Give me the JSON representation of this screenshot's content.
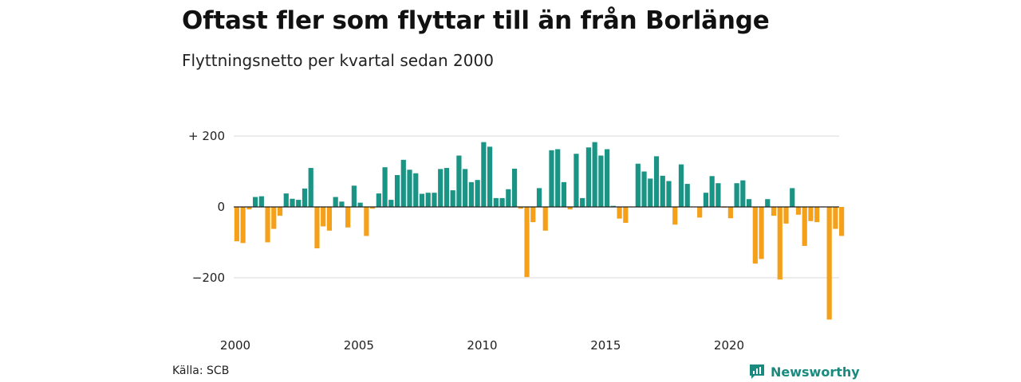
{
  "header": {
    "title": "Oftast fler som flyttar till än från Borlänge",
    "subtitle": "Flyttningsnetto per kvartal sedan 2000"
  },
  "footer": {
    "source": "Källa: SCB",
    "brand": "Newsworthy",
    "brand_icon": "newsworthy-logo-icon"
  },
  "colors": {
    "positive": "#1a9484",
    "negative": "#f5a01a",
    "grid": "#d9d9d9",
    "baseline": "#222222"
  },
  "chart_data": {
    "type": "bar",
    "title": "Oftast fler som flyttar till än från Borlänge",
    "subtitle": "Flyttningsnetto per kvartal sedan 2000",
    "xlabel": "",
    "ylabel": "",
    "ylim": [
      -320,
      200
    ],
    "y_ticks": [
      {
        "value": 200,
        "label": "+ 200"
      },
      {
        "value": 0,
        "label": "0"
      },
      {
        "value": -200,
        "label": "−200"
      }
    ],
    "x_ticks": [
      "2000",
      "2005",
      "2010",
      "2015",
      "2020"
    ],
    "grid": true,
    "start": "2000 Q1",
    "categories": [
      "2000 Q1",
      "2000 Q2",
      "2000 Q3",
      "2000 Q4",
      "2001 Q1",
      "2001 Q2",
      "2001 Q3",
      "2001 Q4",
      "2002 Q1",
      "2002 Q2",
      "2002 Q3",
      "2002 Q4",
      "2003 Q1",
      "2003 Q2",
      "2003 Q3",
      "2003 Q4",
      "2004 Q1",
      "2004 Q2",
      "2004 Q3",
      "2004 Q4",
      "2005 Q1",
      "2005 Q2",
      "2005 Q3",
      "2005 Q4",
      "2006 Q1",
      "2006 Q2",
      "2006 Q3",
      "2006 Q4",
      "2007 Q1",
      "2007 Q2",
      "2007 Q3",
      "2007 Q4",
      "2008 Q1",
      "2008 Q2",
      "2008 Q3",
      "2008 Q4",
      "2009 Q1",
      "2009 Q2",
      "2009 Q3",
      "2009 Q4",
      "2010 Q1",
      "2010 Q2",
      "2010 Q3",
      "2010 Q4",
      "2011 Q1",
      "2011 Q2",
      "2011 Q3",
      "2011 Q4",
      "2012 Q1",
      "2012 Q2",
      "2012 Q3",
      "2012 Q4",
      "2013 Q1",
      "2013 Q2",
      "2013 Q3",
      "2013 Q4",
      "2014 Q1",
      "2014 Q2",
      "2014 Q3",
      "2014 Q4",
      "2015 Q1",
      "2015 Q2",
      "2015 Q3",
      "2015 Q4",
      "2016 Q1",
      "2016 Q2",
      "2016 Q3",
      "2016 Q4",
      "2017 Q1",
      "2017 Q2",
      "2017 Q3",
      "2017 Q4",
      "2018 Q1",
      "2018 Q2",
      "2018 Q3",
      "2018 Q4",
      "2019 Q1",
      "2019 Q2",
      "2019 Q3",
      "2019 Q4",
      "2020 Q1",
      "2020 Q2",
      "2020 Q3",
      "2020 Q4",
      "2021 Q1",
      "2021 Q2",
      "2021 Q3",
      "2021 Q4",
      "2022 Q1",
      "2022 Q2",
      "2022 Q3",
      "2022 Q4",
      "2023 Q1",
      "2023 Q2",
      "2023 Q3",
      "2023 Q4",
      "2024 Q1",
      "2024 Q2",
      "2024 Q3"
    ],
    "values": [
      -97,
      -102,
      -7,
      28,
      30,
      -100,
      -62,
      -25,
      38,
      23,
      20,
      52,
      110,
      -117,
      -55,
      -67,
      28,
      15,
      -58,
      60,
      12,
      -82,
      -5,
      38,
      112,
      20,
      90,
      133,
      105,
      95,
      37,
      40,
      40,
      107,
      110,
      47,
      145,
      107,
      70,
      76,
      183,
      170,
      25,
      25,
      50,
      108,
      -5,
      -198,
      -43,
      53,
      -67,
      160,
      163,
      70,
      -7,
      150,
      25,
      168,
      183,
      145,
      163,
      3,
      -33,
      -45,
      0,
      122,
      100,
      80,
      143,
      88,
      73,
      -50,
      120,
      65,
      0,
      -30,
      40,
      87,
      67,
      -2,
      -32,
      67,
      75,
      22,
      -160,
      -147,
      22,
      -25,
      -205,
      -47,
      53,
      -22,
      -110,
      -40,
      -43,
      0,
      -318,
      -62,
      -82
    ]
  }
}
